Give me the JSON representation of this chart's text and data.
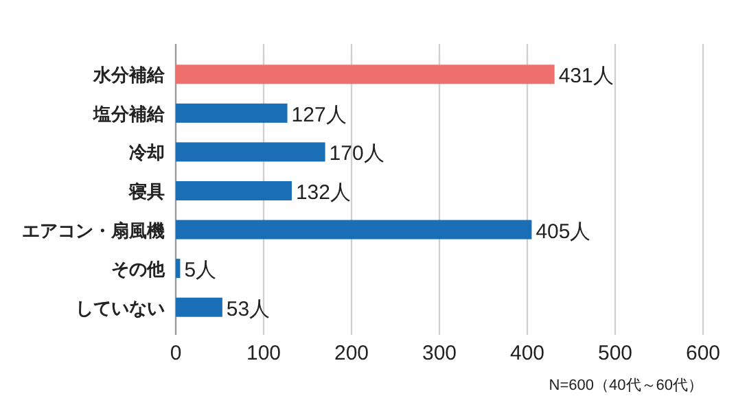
{
  "chart_data": {
    "type": "bar",
    "orientation": "horizontal",
    "categories": [
      "水分補給",
      "塩分補給",
      "冷却",
      "寝具",
      "エアコン・扇風機",
      "その他",
      "していない"
    ],
    "values": [
      431,
      127,
      170,
      132,
      405,
      5,
      53
    ],
    "colors": [
      "#ef6f6c",
      "#1a6eb6",
      "#1a6eb6",
      "#1a6eb6",
      "#1a6eb6",
      "#1a6eb6",
      "#1a6eb6"
    ],
    "value_labels": [
      "431人",
      "127人",
      "170人",
      "132人",
      "405人",
      "5人",
      "53人"
    ],
    "xlim": [
      0,
      600
    ],
    "xticks": [
      0,
      100,
      200,
      300,
      400,
      500,
      600
    ],
    "grid": "x",
    "annotations": [
      "N=600（40代～60代）"
    ]
  }
}
